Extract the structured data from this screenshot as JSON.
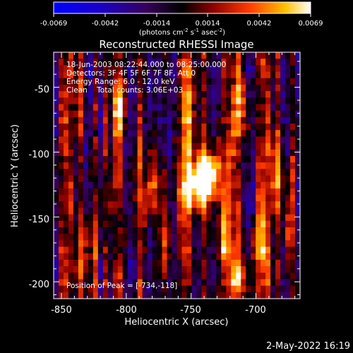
{
  "chart_data": {
    "type": "heatmap",
    "title": "Reconstructed RHESSI Image",
    "xlabel": "Heliocentric X (arcsec)",
    "ylabel": "Heliocentric Y (arcsec)",
    "xlim": [
      -856,
      -666
    ],
    "ylim": [
      -213,
      -23
    ],
    "xticks": [
      -850,
      -800,
      -750,
      -700
    ],
    "yticks": [
      -50,
      -100,
      -150,
      -200
    ],
    "colorbar": {
      "colormap": "rhessi-red-temperature",
      "range": [
        -0.0069,
        0.0069
      ],
      "ticks": [
        "-0.0069",
        "-0.0042",
        "-0.0014",
        "0.0014",
        "0.0042",
        "0.0069"
      ],
      "label_main": "(photons cm",
      "label_sup1": "-2",
      "label_mid1": " s",
      "label_sup2": "-1",
      "label_mid2": " asec",
      "label_sup3": "-2",
      "label_end": ")"
    },
    "annotations": [
      "18-Jun-2003 08:22:44.000 to 08:25:00.000",
      "Detectors: 3F 4F 5F 6F 7F 8F, Att 0",
      "Energy Range: 6.0 - 12.0 keV",
      "Clean    Total counts: 3.06E+03"
    ],
    "peak_text": "Position of Peak = [-734,-118]",
    "peak": {
      "x": -734,
      "y": -118
    },
    "sources": [
      {
        "x": -738,
        "y": -118,
        "sx": 9,
        "sy": 14,
        "amp": 0.0068
      },
      {
        "x": -748,
        "y": -125,
        "sx": 8,
        "sy": 13,
        "amp": 0.0058
      },
      {
        "x": -752,
        "y": -80,
        "sx": 4,
        "sy": 24,
        "amp": 0.0046
      },
      {
        "x": -805,
        "y": -65,
        "sx": 4,
        "sy": 14,
        "amp": 0.0052
      },
      {
        "x": -782,
        "y": -130,
        "sx": 5,
        "sy": 20,
        "amp": 0.0045
      },
      {
        "x": -772,
        "y": -175,
        "sx": 4,
        "sy": 22,
        "amp": 0.004
      },
      {
        "x": -723,
        "y": -170,
        "sx": 5,
        "sy": 18,
        "amp": 0.0044
      },
      {
        "x": -713,
        "y": -200,
        "sx": 4,
        "sy": 8,
        "amp": 0.0045
      },
      {
        "x": -697,
        "y": -175,
        "sx": 5,
        "sy": 20,
        "amp": 0.004
      },
      {
        "x": -828,
        "y": -175,
        "sx": 4,
        "sy": 28,
        "amp": 0.0036
      },
      {
        "x": -676,
        "y": -150,
        "sx": 3,
        "sy": 30,
        "amp": 0.004
      },
      {
        "x": -712,
        "y": -70,
        "sx": 4,
        "sy": 20,
        "amp": 0.0035
      },
      {
        "x": -686,
        "y": -110,
        "sx": 4,
        "sy": 18,
        "amp": 0.003
      }
    ]
  },
  "timestamp": "2-May-2022 16:19"
}
